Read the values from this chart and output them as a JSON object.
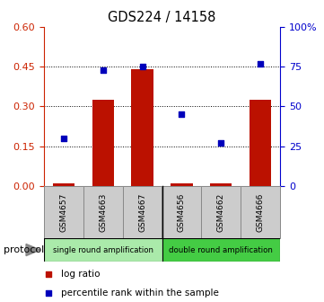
{
  "title": "GDS224 / 14158",
  "samples": [
    "GSM4657",
    "GSM4663",
    "GSM4667",
    "GSM4656",
    "GSM4662",
    "GSM4666"
  ],
  "log_ratio": [
    0.008,
    0.325,
    0.44,
    0.008,
    0.008,
    0.325
  ],
  "percentile_rank": [
    30,
    73,
    75,
    45,
    27,
    77
  ],
  "groups": [
    {
      "label": "single round amplification",
      "color": "#aaeaaa"
    },
    {
      "label": "double round amplification",
      "color": "#44cc44"
    }
  ],
  "bar_color": "#bb1100",
  "dot_color": "#0000bb",
  "left_yticks": [
    0,
    0.15,
    0.3,
    0.45,
    0.6
  ],
  "right_ytick_vals": [
    0,
    25,
    50,
    75,
    100
  ],
  "right_ytick_labels": [
    "0",
    "25",
    "50",
    "75",
    "100%"
  ],
  "ylim_left": [
    0,
    0.6
  ],
  "ylim_right": [
    0,
    100
  ],
  "left_axis_color": "#cc2200",
  "right_axis_color": "#0000cc",
  "background": "#ffffff",
  "legend_log_ratio": "log ratio",
  "legend_percentile": "percentile rank within the sample",
  "protocol_label": "protocol",
  "bar_width": 0.55,
  "sample_box_color": "#cccccc",
  "sample_box_edge": "#888888"
}
